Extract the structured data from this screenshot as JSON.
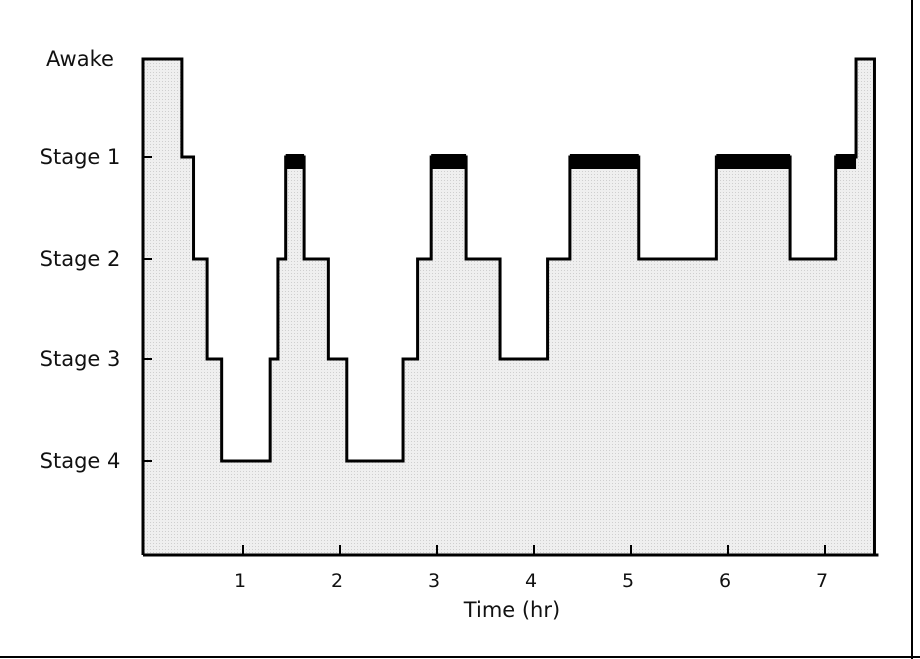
{
  "chart_data": {
    "type": "line",
    "subtype": "step-hypnogram",
    "title": "",
    "xlabel": "Time (hr)",
    "ylabel": "",
    "xlim": [
      0,
      7.6
    ],
    "x_ticks": [
      "1",
      "2",
      "3",
      "4",
      "5",
      "6",
      "7"
    ],
    "y_categories": [
      "Awake",
      "Stage 1",
      "Stage 2",
      "Stage 3",
      "Stage 4"
    ],
    "grid": false,
    "fill_color": "#e6e6e6",
    "rem_marker_color": "#000000",
    "segments": [
      {
        "start": 0.0,
        "end": 0.37,
        "stage": "Awake"
      },
      {
        "start": 0.37,
        "end": 0.49,
        "stage": "Stage 1"
      },
      {
        "start": 0.49,
        "end": 0.63,
        "stage": "Stage 2"
      },
      {
        "start": 0.63,
        "end": 0.78,
        "stage": "Stage 3"
      },
      {
        "start": 0.78,
        "end": 1.28,
        "stage": "Stage 4"
      },
      {
        "start": 1.28,
        "end": 1.36,
        "stage": "Stage 3"
      },
      {
        "start": 1.36,
        "end": 1.44,
        "stage": "Stage 2"
      },
      {
        "start": 1.44,
        "end": 1.63,
        "stage": "Stage 1",
        "rem": true
      },
      {
        "start": 1.63,
        "end": 1.88,
        "stage": "Stage 2"
      },
      {
        "start": 1.88,
        "end": 2.07,
        "stage": "Stage 3"
      },
      {
        "start": 2.07,
        "end": 2.65,
        "stage": "Stage 4"
      },
      {
        "start": 2.65,
        "end": 2.8,
        "stage": "Stage 3"
      },
      {
        "start": 2.8,
        "end": 2.94,
        "stage": "Stage 2"
      },
      {
        "start": 2.94,
        "end": 3.3,
        "stage": "Stage 1",
        "rem": true
      },
      {
        "start": 3.3,
        "end": 3.65,
        "stage": "Stage 2"
      },
      {
        "start": 3.65,
        "end": 4.14,
        "stage": "Stage 3"
      },
      {
        "start": 4.14,
        "end": 4.37,
        "stage": "Stage 2"
      },
      {
        "start": 4.37,
        "end": 5.08,
        "stage": "Stage 1",
        "rem": true
      },
      {
        "start": 5.08,
        "end": 5.88,
        "stage": "Stage 2"
      },
      {
        "start": 5.88,
        "end": 6.64,
        "stage": "Stage 1",
        "rem": true
      },
      {
        "start": 6.64,
        "end": 7.11,
        "stage": "Stage 2"
      },
      {
        "start": 7.11,
        "end": 7.32,
        "stage": "Stage 1",
        "rem": true
      },
      {
        "start": 7.32,
        "end": 7.51,
        "stage": "Awake"
      }
    ]
  }
}
